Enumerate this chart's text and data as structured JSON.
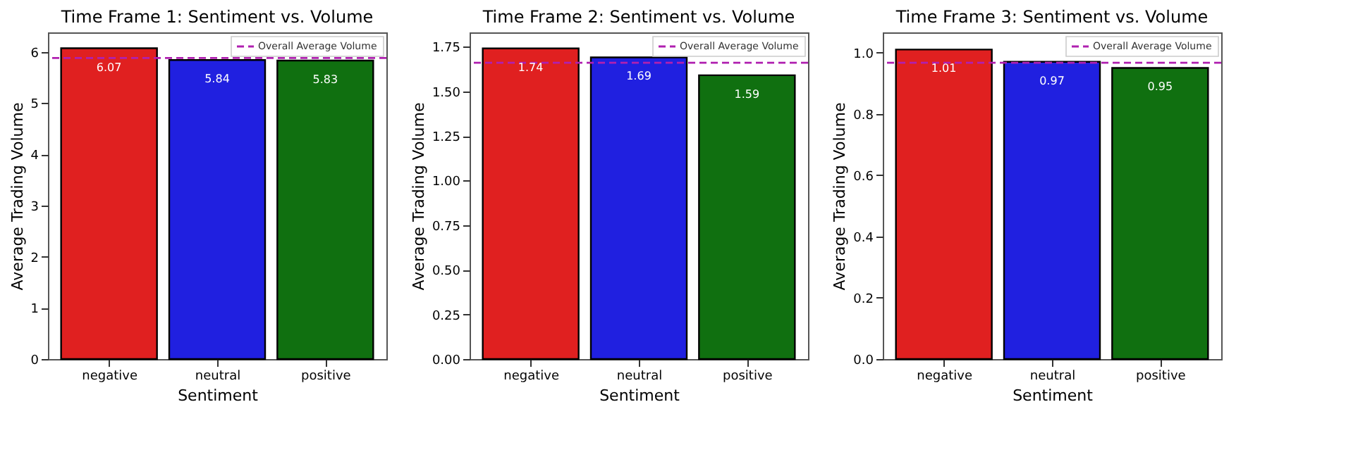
{
  "chart_data": [
    {
      "type": "bar",
      "title": "Time Frame 1: Sentiment vs. Volume",
      "xlabel": "Sentiment",
      "ylabel": "Average Trading Volume",
      "categories": [
        "negative",
        "neutral",
        "positive"
      ],
      "values": [
        6.07,
        5.84,
        5.83
      ],
      "colors": [
        "#e02020",
        "#2020e0",
        "#107010"
      ],
      "ylim": [
        0,
        6.38
      ],
      "yticks": [
        0,
        1,
        2,
        3,
        4,
        5,
        6
      ],
      "ref_lines": [
        {
          "axis": "y",
          "value": 5.88,
          "label": "Overall Average Volume",
          "color": "#b020b0",
          "line_style": "dashed"
        }
      ],
      "data_labels": true,
      "legend": "top right",
      "grid": false
    },
    {
      "type": "bar",
      "title": "Time Frame 2: Sentiment vs. Volume",
      "xlabel": "Sentiment",
      "ylabel": "Average Trading Volume",
      "categories": [
        "negative",
        "neutral",
        "positive"
      ],
      "values": [
        1.74,
        1.69,
        1.59
      ],
      "colors": [
        "#e02020",
        "#2020e0",
        "#107010"
      ],
      "ylim": [
        0,
        1.83
      ],
      "yticks": [
        {
          "value": 0,
          "label": "0.00"
        },
        {
          "value": 0.25,
          "label": "0.25"
        },
        {
          "value": 0.5,
          "label": "0.50"
        },
        {
          "value": 0.75,
          "label": "0.75"
        },
        {
          "value": 1,
          "label": "1.00"
        },
        {
          "value": 1.25,
          "label": "1.25"
        },
        {
          "value": 1.5,
          "label": "1.50"
        },
        {
          "value": 1.75,
          "label": "1.75"
        }
      ],
      "ref_lines": [
        {
          "axis": "y",
          "value": 1.66,
          "label": "Overall Average Volume",
          "color": "#b020b0",
          "line_style": "dashed"
        }
      ],
      "data_labels": true,
      "legend": "top right",
      "grid": false
    },
    {
      "type": "bar",
      "title": "Time Frame 3: Sentiment vs. Volume",
      "xlabel": "Sentiment",
      "ylabel": "Average Trading Volume",
      "categories": [
        "negative",
        "neutral",
        "positive"
      ],
      "values": [
        1.01,
        0.97,
        0.95
      ],
      "colors": [
        "#e02020",
        "#2020e0",
        "#107010"
      ],
      "ylim": [
        0,
        1.066
      ],
      "yticks": [
        {
          "value": 0,
          "label": "0.0"
        },
        {
          "value": 0.2,
          "label": "0.2"
        },
        {
          "value": 0.4,
          "label": "0.4"
        },
        {
          "value": 0.6,
          "label": "0.6"
        },
        {
          "value": 0.8,
          "label": "0.8"
        },
        {
          "value": 1,
          "label": "1.0"
        }
      ],
      "ref_lines": [
        {
          "axis": "y",
          "value": 0.967,
          "label": "Overall Average Volume",
          "color": "#b020b0",
          "line_style": "dashed"
        }
      ],
      "data_labels": true,
      "legend": "top right",
      "grid": false
    }
  ]
}
